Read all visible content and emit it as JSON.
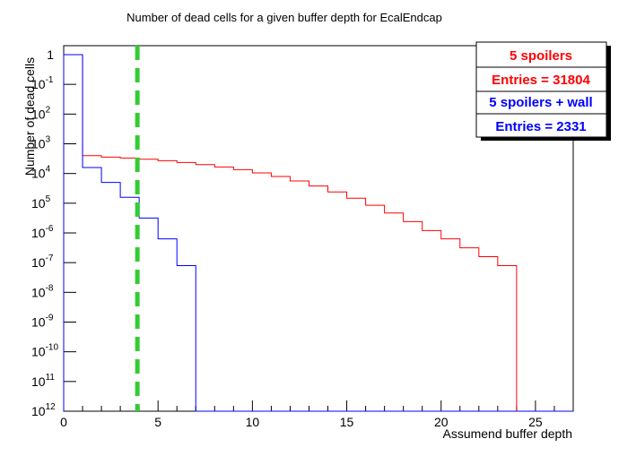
{
  "chart_data": {
    "type": "histogram",
    "title": "Number of dead cells for a given buffer depth for EcalEndcap",
    "xlabel": "Assumend buffer depth",
    "ylabel": "Number of dead cells",
    "xlim": [
      0,
      27
    ],
    "ylim_exponent": [
      -12,
      0
    ],
    "yscale": "log",
    "x_ticks": [
      0,
      5,
      10,
      15,
      20,
      25
    ],
    "y_tick_labels": [
      "1",
      "10",
      "10",
      "10",
      "10",
      "10",
      "10",
      "10",
      "10",
      "10",
      "10",
      "10",
      "10"
    ],
    "y_tick_exponents": [
      "",
      "-1",
      "2",
      "3",
      "4",
      "5",
      "-6",
      "-7",
      "-8",
      "-9",
      "-10",
      "11",
      "12"
    ],
    "series": [
      {
        "name": "5 spoilers",
        "color": "#ff0000",
        "bin_edges": [
          0,
          1,
          2,
          3,
          4,
          5,
          6,
          7,
          8,
          9,
          10,
          11,
          12,
          13,
          14,
          15,
          16,
          17,
          18,
          19,
          20,
          21,
          22,
          23,
          24,
          25,
          26,
          27
        ],
        "values_log10": [
          0,
          -3.4,
          -3.45,
          -3.48,
          -3.52,
          -3.57,
          -3.63,
          -3.7,
          -3.78,
          -3.87,
          -3.98,
          -4.1,
          -4.25,
          -4.42,
          -4.62,
          -4.83,
          -5.07,
          -5.33,
          -5.62,
          -5.92,
          -6.2,
          -6.5,
          -6.8,
          -7.1,
          -12,
          -12,
          -12
        ]
      },
      {
        "name": "5 spoilers + wall",
        "color": "#0000ff",
        "bin_edges": [
          0,
          1,
          2,
          3,
          4,
          5,
          6,
          7,
          8,
          9,
          10,
          11,
          12,
          13,
          14,
          15,
          16,
          17,
          18,
          19,
          20,
          21,
          22,
          23,
          24,
          25,
          26,
          27
        ],
        "values_log10": [
          0,
          -3.8,
          -4.3,
          -4.8,
          -5.5,
          -6.2,
          -7.1,
          -12,
          -12,
          -12,
          -12,
          -12,
          -12,
          -12,
          -12,
          -12,
          -12,
          -12,
          -12,
          -12,
          -12,
          -12,
          -12,
          -12,
          -12,
          -12,
          -12
        ]
      }
    ],
    "reference_line": {
      "x": 4,
      "color": "#33cc33",
      "style": "dashed"
    },
    "legend": {
      "placement": "top-right",
      "entries": [
        {
          "text": "5 spoilers",
          "color": "#ff0000"
        },
        {
          "text": "Entries = 31804",
          "color": "#ff0000"
        },
        {
          "text": "5 spoilers + wall",
          "color": "#0000ff"
        },
        {
          "text": "Entries = 2331",
          "color": "#0000ff"
        }
      ]
    }
  }
}
